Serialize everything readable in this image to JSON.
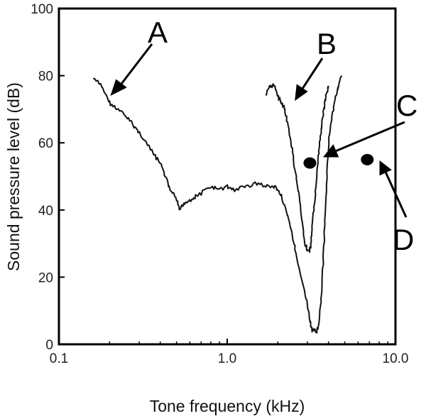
{
  "chart_data": {
    "type": "line",
    "title": "",
    "xlabel": "Tone frequency (kHz)",
    "ylabel": "Sound pressure level (dB)",
    "xscale": "log",
    "xlim": [
      0.1,
      10.0
    ],
    "ylim": [
      0,
      100
    ],
    "grid": false,
    "x_ticks": [
      0.1,
      1.0,
      10.0
    ],
    "x_tick_labels": [
      "0.1",
      "1.0",
      "10.0"
    ],
    "y_ticks": [
      0,
      20,
      40,
      60,
      80,
      100
    ],
    "y_tick_labels": [
      "0",
      "20",
      "40",
      "60",
      "80",
      "100"
    ],
    "series": [
      {
        "label": "A",
        "x": [
          0.16,
          0.18,
          0.2,
          0.22,
          0.25,
          0.28,
          0.3,
          0.33,
          0.36,
          0.4,
          0.43,
          0.46,
          0.5,
          0.52,
          0.55,
          0.6,
          0.65,
          0.7,
          0.8,
          0.9,
          1.0,
          1.1,
          1.3,
          1.5,
          1.7,
          1.9,
          2.0,
          2.1,
          2.3,
          2.5,
          2.6,
          2.8,
          3.0,
          3.1,
          3.2,
          3.4,
          3.5,
          3.6,
          3.7,
          3.8,
          3.9,
          4.0,
          4.2,
          4.4,
          4.6,
          4.8
        ],
        "y": [
          79,
          77,
          72,
          70,
          68,
          65,
          63,
          60,
          57,
          54,
          50,
          46,
          43,
          40,
          42,
          43,
          44,
          45,
          47,
          46,
          47,
          46,
          47,
          48,
          47,
          47,
          46,
          44,
          38,
          30,
          25,
          18,
          12,
          7,
          4,
          4,
          6,
          12,
          22,
          35,
          48,
          60,
          68,
          74,
          77,
          80
        ],
        "color": "#111111"
      },
      {
        "label": "B",
        "x": [
          1.7,
          1.8,
          1.9,
          2.0,
          2.1,
          2.2,
          2.3,
          2.4,
          2.5,
          2.6,
          2.7,
          2.8,
          2.9,
          3.0,
          3.1,
          3.15,
          3.2,
          3.3,
          3.4,
          3.5,
          3.6,
          3.7,
          3.8,
          3.9,
          4.0
        ],
        "y": [
          74,
          77,
          77,
          74,
          72,
          70,
          65,
          60,
          54,
          48,
          42,
          36,
          30,
          28,
          28,
          30,
          35,
          42,
          50,
          57,
          63,
          68,
          72,
          75,
          77
        ],
        "color": "#111111"
      }
    ],
    "points": [
      {
        "label": "C",
        "x": 3.1,
        "y": 54,
        "color": "#000000"
      },
      {
        "label": "D",
        "x": 6.8,
        "y": 55,
        "color": "#000000"
      }
    ],
    "annotations": [
      "A",
      "B",
      "C",
      "D"
    ]
  }
}
